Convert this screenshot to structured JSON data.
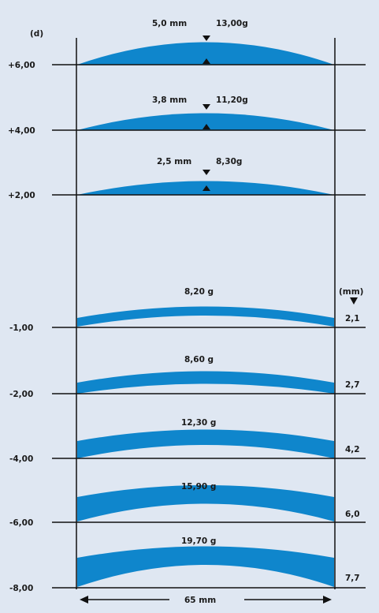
{
  "diagram": {
    "y_unit_label": "(d)",
    "thickness_unit_label": "(mm)",
    "width_label": "65 mm",
    "colors": {
      "lens": "#0f86cc",
      "line": "#111111",
      "background": "#dfe7f2"
    },
    "plus_lenses": [
      {
        "power": "+6,00",
        "center_thickness": "5,0 mm",
        "weight": "13,00g"
      },
      {
        "power": "+4,00",
        "center_thickness": "3,8 mm",
        "weight": "11,20g"
      },
      {
        "power": "+2,00",
        "center_thickness": "2,5 mm",
        "weight": "8,30g"
      }
    ],
    "minus_lenses": [
      {
        "power": "-1,00",
        "weight": "8,20 g",
        "edge_thickness": "2,1"
      },
      {
        "power": "-2,00",
        "weight": "8,60 g",
        "edge_thickness": "2,7"
      },
      {
        "power": "-4,00",
        "weight": "12,30 g",
        "edge_thickness": "4,2"
      },
      {
        "power": "-6,00",
        "weight": "15,90 g",
        "edge_thickness": "6,0"
      },
      {
        "power": "-8,00",
        "weight": "19,70 g",
        "edge_thickness": "7,7"
      }
    ]
  }
}
